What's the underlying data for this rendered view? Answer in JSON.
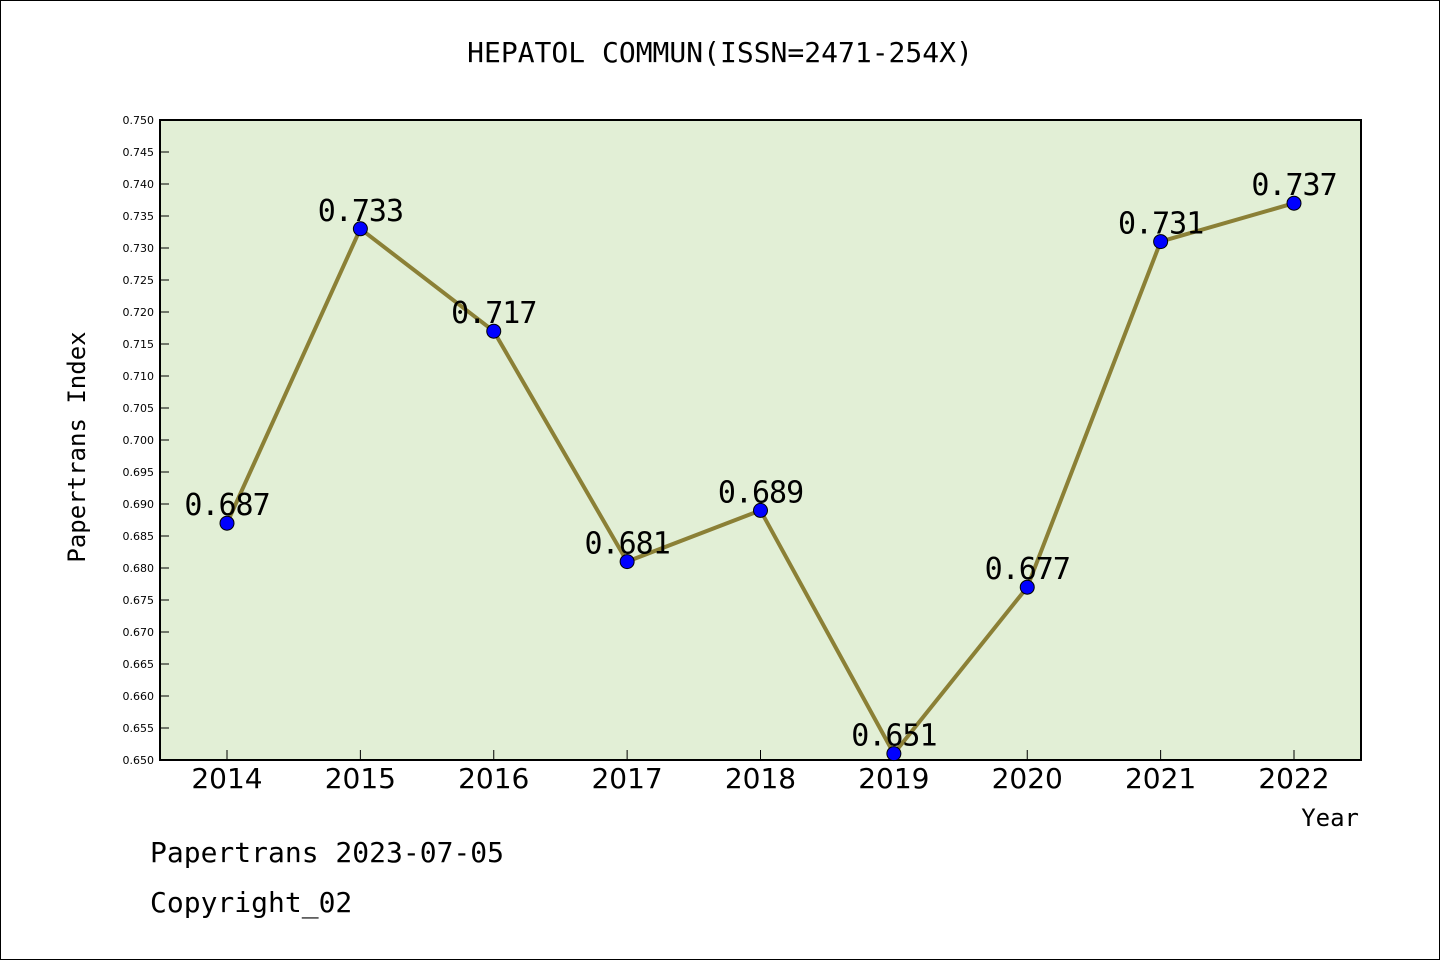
{
  "chart_data": {
    "type": "line",
    "title": "HEPATOL COMMUN(ISSN=2471-254X)",
    "xlabel": "Year",
    "ylabel": "Papertrans Index",
    "categories": [
      "2014",
      "2015",
      "2016",
      "2017",
      "2018",
      "2019",
      "2020",
      "2021",
      "2022"
    ],
    "values": [
      0.687,
      0.733,
      0.717,
      0.681,
      0.689,
      0.651,
      0.677,
      0.731,
      0.737
    ],
    "value_labels": [
      "0.687",
      "0.733",
      "0.717",
      "0.681",
      "0.689",
      "0.651",
      "0.677",
      "0.731",
      "0.737"
    ],
    "ylim": [
      0.65,
      0.75
    ],
    "ytick_step": 0.005,
    "grid": false,
    "colors": {
      "plot_background": "#e2efd6",
      "line": "#8b8036",
      "marker": "#0000ff"
    }
  },
  "footer": {
    "line1": "Papertrans 2023-07-05",
    "line2": "Copyright_02"
  }
}
